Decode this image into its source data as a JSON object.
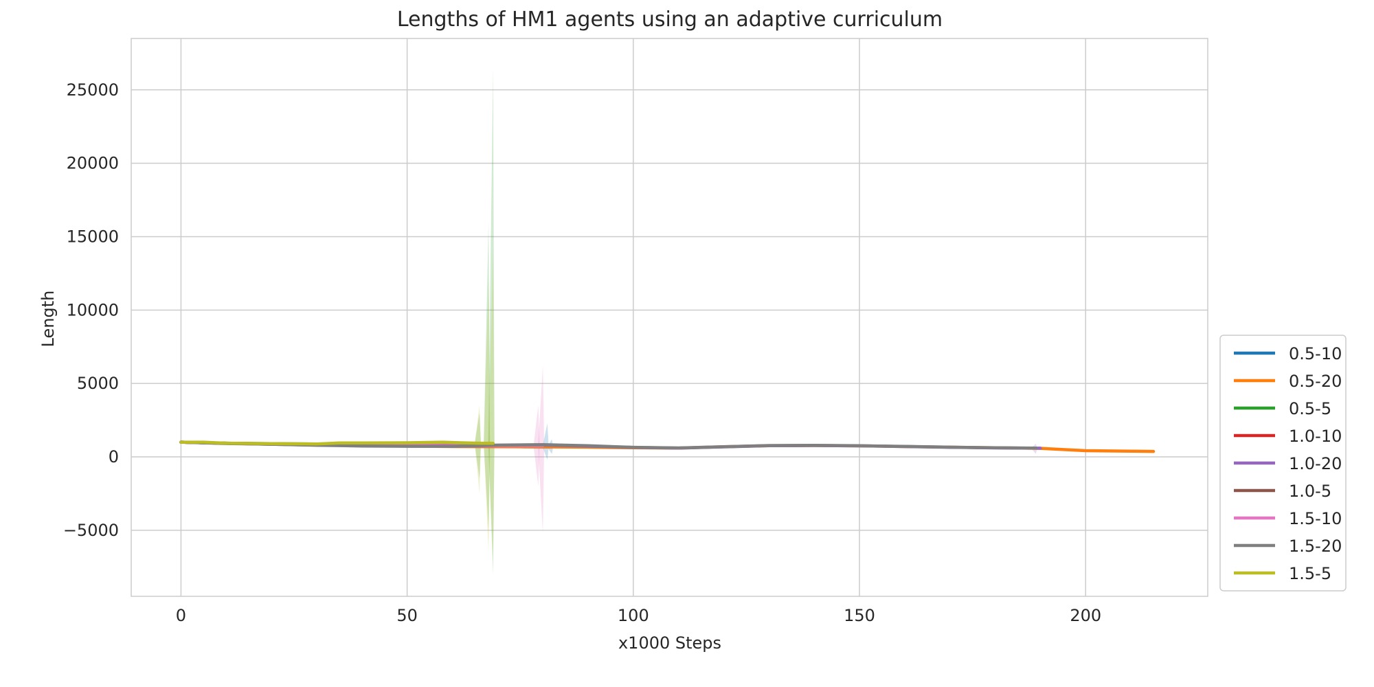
{
  "chart_data": {
    "type": "line",
    "title": "Lengths of HM1 agents using an adaptive curriculum",
    "xlabel": "x1000 Steps",
    "ylabel": "Length",
    "xlim": [
      -11,
      227
    ],
    "ylim": [
      -9500,
      28500
    ],
    "xticks": [
      0,
      50,
      100,
      150,
      200
    ],
    "xtick_labels": [
      "0",
      "50",
      "100",
      "150",
      "200"
    ],
    "yticks": [
      -5000,
      0,
      5000,
      10000,
      15000,
      20000,
      25000
    ],
    "ytick_labels": [
      "−5000",
      "0",
      "5000",
      "10000",
      "15000",
      "20000",
      "25000"
    ],
    "grid": true,
    "legend_position": "lower-right-outside",
    "series": [
      {
        "name": "0.5-10",
        "color": "#1f77b4",
        "x": [
          0,
          10,
          20,
          30,
          40,
          50,
          60,
          70,
          75,
          80,
          82
        ],
        "y": [
          1000,
          930,
          880,
          820,
          780,
          760,
          730,
          700,
          690,
          680,
          680
        ],
        "band": [
          {
            "x": 81,
            "lo": -200,
            "hi": 2300
          },
          {
            "x": 82,
            "lo": 200,
            "hi": 1200
          }
        ]
      },
      {
        "name": "0.5-20",
        "color": "#ff7f0e",
        "x": [
          0,
          10,
          20,
          30,
          40,
          50,
          60,
          70,
          80,
          90,
          100,
          110,
          120,
          130,
          140,
          150,
          160,
          170,
          180,
          190,
          200,
          210,
          215
        ],
        "y": [
          1000,
          920,
          880,
          830,
          780,
          740,
          700,
          690,
          680,
          660,
          620,
          600,
          690,
          760,
          770,
          750,
          700,
          660,
          620,
          580,
          420,
          390,
          370
        ],
        "band": []
      },
      {
        "name": "0.5-5",
        "color": "#2ca02c",
        "x": [
          0,
          10,
          20,
          30,
          40,
          50,
          60,
          69
        ],
        "y": [
          1000,
          930,
          900,
          880,
          870,
          880,
          900,
          880
        ],
        "band": [
          {
            "x": 66,
            "lo": -1500,
            "hi": 3000
          },
          {
            "x": 68,
            "lo": -5000,
            "hi": 16000
          },
          {
            "x": 69,
            "lo": -8000,
            "hi": 26500
          }
        ]
      },
      {
        "name": "1.0-10",
        "color": "#d62728",
        "x": [
          0,
          10,
          20,
          30,
          40,
          50,
          60,
          69
        ],
        "y": [
          1000,
          920,
          890,
          860,
          850,
          860,
          880,
          870
        ],
        "band": []
      },
      {
        "name": "1.0-20",
        "color": "#9467bd",
        "x": [
          0,
          10,
          20,
          30,
          40,
          50,
          60,
          70,
          80,
          90,
          100,
          110,
          120,
          130,
          140,
          150,
          160,
          170,
          180,
          190
        ],
        "y": [
          1000,
          920,
          870,
          820,
          760,
          730,
          720,
          760,
          800,
          730,
          640,
          600,
          680,
          760,
          770,
          750,
          700,
          650,
          610,
          590
        ],
        "band": [
          {
            "x": 189,
            "lo": 200,
            "hi": 900
          }
        ]
      },
      {
        "name": "1.0-5",
        "color": "#8c564b",
        "x": [
          0,
          10,
          20,
          30,
          40,
          50,
          60,
          69
        ],
        "y": [
          1000,
          920,
          860,
          800,
          780,
          790,
          800,
          790
        ],
        "band": []
      },
      {
        "name": "1.5-10",
        "color": "#e377c2",
        "x": [
          0,
          10,
          20,
          30,
          40,
          50,
          60,
          70,
          75,
          80
        ],
        "y": [
          1000,
          920,
          870,
          820,
          790,
          780,
          770,
          760,
          760,
          760
        ],
        "band": [
          {
            "x": 79,
            "lo": -2000,
            "hi": 3500
          },
          {
            "x": 80,
            "lo": -5200,
            "hi": 6200
          }
        ]
      },
      {
        "name": "1.5-20",
        "color": "#7f7f7f",
        "x": [
          0,
          10,
          20,
          30,
          40,
          50,
          60,
          70,
          80,
          90,
          100,
          110,
          120,
          130,
          140,
          150,
          160,
          170,
          180,
          189
        ],
        "y": [
          1000,
          910,
          860,
          790,
          740,
          720,
          720,
          800,
          830,
          760,
          650,
          610,
          690,
          770,
          780,
          760,
          710,
          660,
          620,
          600
        ],
        "band": []
      },
      {
        "name": "1.5-5",
        "color": "#bcbd22",
        "x": [
          0,
          5,
          10,
          20,
          30,
          35,
          40,
          50,
          58,
          62,
          66,
          69
        ],
        "y": [
          1000,
          1000,
          930,
          900,
          880,
          950,
          950,
          960,
          1000,
          960,
          930,
          920
        ],
        "band": [
          {
            "x": 66,
            "lo": -2500,
            "hi": 3500
          },
          {
            "x": 68,
            "lo": -6500,
            "hi": 12000
          },
          {
            "x": 69,
            "lo": -7000,
            "hi": 14000
          }
        ]
      }
    ]
  }
}
